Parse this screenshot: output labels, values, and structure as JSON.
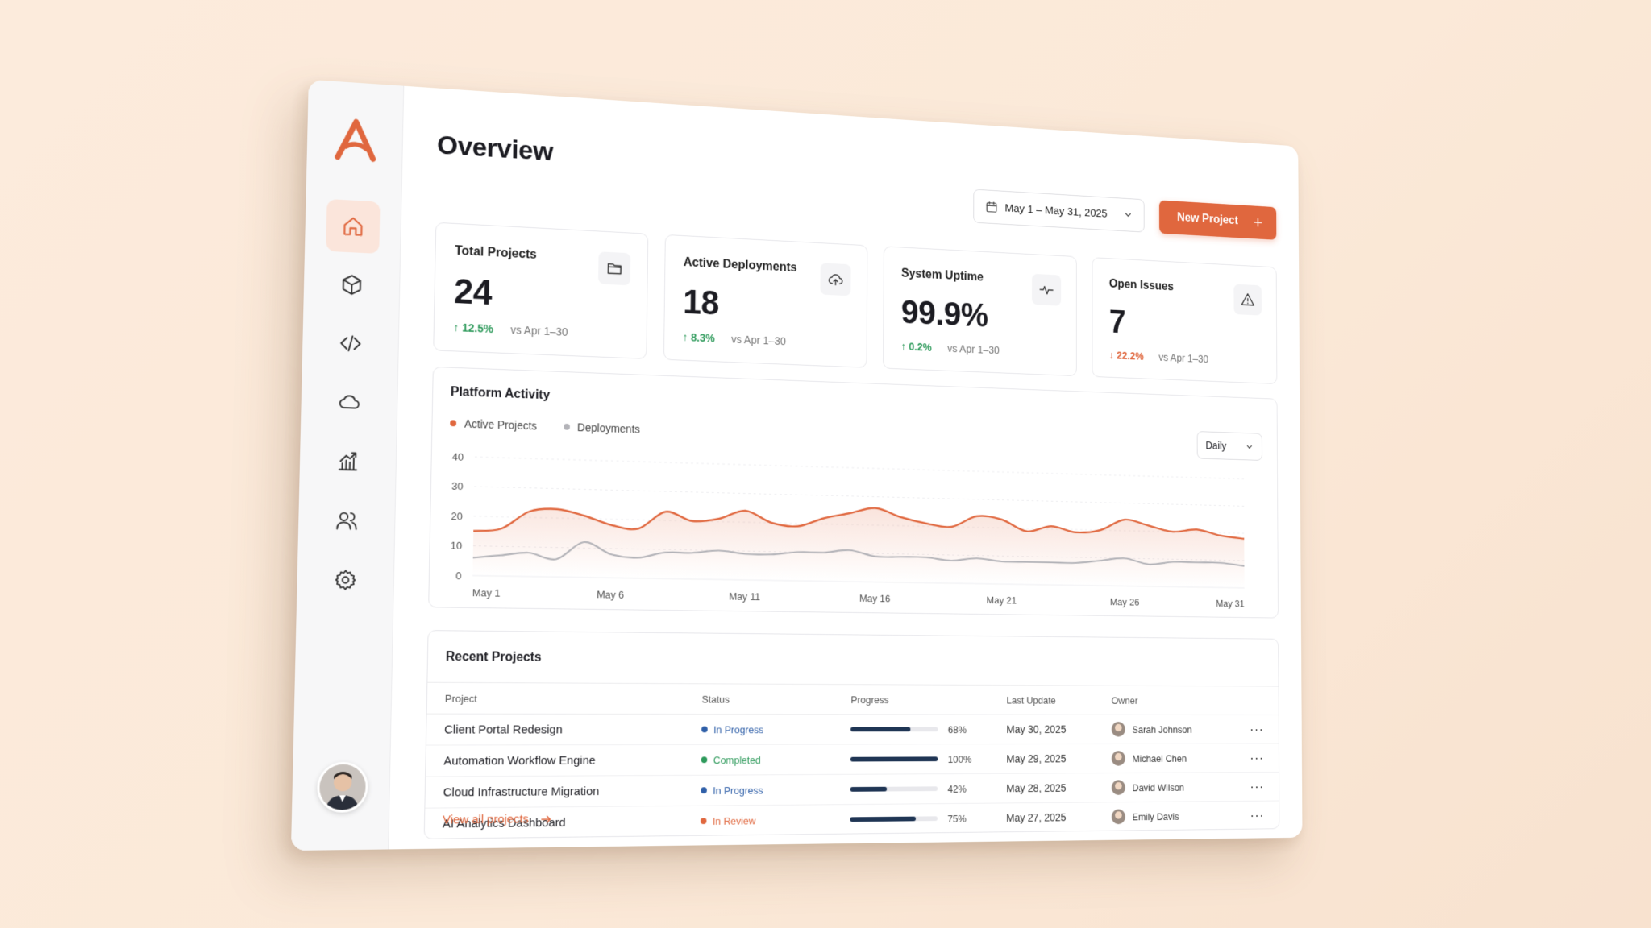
{
  "page": {
    "title": "Overview"
  },
  "toolbar": {
    "date_range": "May 1 – May 31, 2025",
    "new_project_label": "New Project"
  },
  "sidebar": {
    "items": [
      {
        "name": "home",
        "icon": "home-icon",
        "active": true
      },
      {
        "name": "products",
        "icon": "cube-icon",
        "active": false
      },
      {
        "name": "code",
        "icon": "code-icon",
        "active": false
      },
      {
        "name": "cloud",
        "icon": "cloud-icon",
        "active": false
      },
      {
        "name": "analytics",
        "icon": "chart-icon",
        "active": false
      },
      {
        "name": "users",
        "icon": "users-icon",
        "active": false
      },
      {
        "name": "settings",
        "icon": "gear-icon",
        "active": false
      }
    ]
  },
  "kpis": [
    {
      "label": "Total Projects",
      "value": "24",
      "delta": "12.5%",
      "direction": "up",
      "compare": "vs Apr 1–30",
      "icon": "folder-icon"
    },
    {
      "label": "Active Deployments",
      "value": "18",
      "delta": "8.3%",
      "direction": "up",
      "compare": "vs Apr 1–30",
      "icon": "cloud-upload-icon"
    },
    {
      "label": "System Uptime",
      "value": "99.9%",
      "delta": "0.2%",
      "direction": "up",
      "compare": "vs Apr 1–30",
      "icon": "pulse-icon"
    },
    {
      "label": "Open Issues",
      "value": "7",
      "delta": "22.2%",
      "direction": "down",
      "compare": "vs Apr 1–30",
      "icon": "warning-icon"
    }
  ],
  "activity": {
    "title": "Platform Activity",
    "range": "Daily",
    "legend": [
      "Active Projects",
      "Deployments"
    ],
    "colors": {
      "active": "#e0673e",
      "deployments": "#b3b3b8"
    }
  },
  "chart_data": {
    "type": "line",
    "x_ticks": [
      "May 1",
      "May 6",
      "May 11",
      "May 16",
      "May 21",
      "May 26",
      "May 31"
    ],
    "x": [
      1,
      2,
      3,
      4,
      5,
      6,
      7,
      8,
      9,
      10,
      11,
      12,
      13,
      14,
      15,
      16,
      17,
      18,
      19,
      20,
      21,
      22,
      23,
      24,
      25,
      26,
      27,
      28,
      29,
      30,
      31
    ],
    "ylim": [
      0,
      40
    ],
    "y_ticks": [
      0,
      10,
      20,
      30,
      40
    ],
    "series": [
      {
        "name": "Active Projects",
        "values": [
          15,
          16,
          22,
          23,
          21,
          18,
          17,
          23,
          20,
          21,
          24,
          20,
          19,
          22,
          24,
          26,
          23,
          21,
          20,
          24,
          23,
          19,
          21,
          19,
          20,
          24,
          22,
          20,
          21,
          19,
          18
        ]
      },
      {
        "name": "Deployments",
        "values": [
          6,
          7,
          8,
          6,
          12,
          8,
          7,
          9,
          9,
          10,
          9,
          9,
          10,
          10,
          11,
          9,
          9,
          9,
          8,
          9,
          8,
          8,
          8,
          8,
          9,
          10,
          8,
          9,
          9,
          9,
          8
        ]
      }
    ]
  },
  "projects": {
    "title": "Recent Projects",
    "columns": [
      "Project",
      "Status",
      "Progress",
      "Last Update",
      "Owner"
    ],
    "rows": [
      {
        "project": "Client Portal Redesign",
        "status": "In Progress",
        "status_color": "#2f5fa8",
        "progress": 68,
        "progress_label": "68%",
        "updated": "May 30, 2025",
        "owner": "Sarah Johnson"
      },
      {
        "project": "Automation Workflow Engine",
        "status": "Completed",
        "status_color": "#2e9a5b",
        "progress": 100,
        "progress_label": "100%",
        "updated": "May 29, 2025",
        "owner": "Michael Chen"
      },
      {
        "project": "Cloud Infrastructure Migration",
        "status": "In Progress",
        "status_color": "#2f5fa8",
        "progress": 42,
        "progress_label": "42%",
        "updated": "May 28, 2025",
        "owner": "David Wilson"
      },
      {
        "project": "AI Analytics Dashboard",
        "status": "In Review",
        "status_color": "#e0673e",
        "progress": 75,
        "progress_label": "75%",
        "updated": "May 27, 2025",
        "owner": "Emily Davis"
      }
    ],
    "view_all": "View all projects"
  }
}
